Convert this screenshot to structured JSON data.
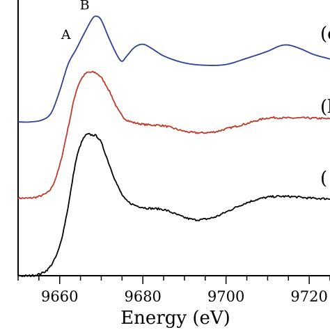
{
  "chart_data": {
    "type": "line",
    "title": "",
    "xlabel": "Energy (eV)",
    "ylabel": "",
    "xlim": [
      9650,
      9725
    ],
    "ylim": [
      0,
      3.55
    ],
    "x_ticks": [
      9660,
      9680,
      9700,
      9720
    ],
    "x_tick_labels": [
      "9660",
      "9680",
      "9700",
      "9720"
    ],
    "grid": false,
    "legend": "none",
    "annotations": [
      {
        "text": "A",
        "x": 9661.5,
        "y": 3.05
      },
      {
        "text": "B",
        "x": 9666,
        "y": 3.43
      }
    ],
    "series": [
      {
        "label": "(c",
        "label_y": 3.12,
        "color": "#2e3f93",
        "noise": 0.0,
        "points": [
          [
            9650,
            1.98
          ],
          [
            9653,
            1.98
          ],
          [
            9656,
            2.01
          ],
          [
            9658,
            2.1
          ],
          [
            9660,
            2.38
          ],
          [
            9662,
            2.72
          ],
          [
            9664,
            2.92
          ],
          [
            9666,
            3.13
          ],
          [
            9668,
            3.32
          ],
          [
            9669,
            3.34
          ],
          [
            9670,
            3.29
          ],
          [
            9672,
            3.04
          ],
          [
            9674,
            2.82
          ],
          [
            9675,
            2.76
          ],
          [
            9676,
            2.82
          ],
          [
            9678,
            2.94
          ],
          [
            9680,
            2.98
          ],
          [
            9682,
            2.93
          ],
          [
            9685,
            2.83
          ],
          [
            9690,
            2.74
          ],
          [
            9695,
            2.71
          ],
          [
            9700,
            2.72
          ],
          [
            9705,
            2.8
          ],
          [
            9710,
            2.89
          ],
          [
            9713,
            2.96
          ],
          [
            9715,
            2.97
          ],
          [
            9718,
            2.92
          ],
          [
            9721,
            2.85
          ],
          [
            9725,
            2.79
          ]
        ]
      },
      {
        "label": "(b",
        "label_y": 2.18,
        "color": "#c0392b",
        "noise": 0.012,
        "points": [
          [
            9650,
            1.0
          ],
          [
            9653,
            1.0
          ],
          [
            9656,
            1.04
          ],
          [
            9658,
            1.13
          ],
          [
            9660,
            1.42
          ],
          [
            9662,
            1.9
          ],
          [
            9664,
            2.38
          ],
          [
            9666,
            2.59
          ],
          [
            9668,
            2.62
          ],
          [
            9669,
            2.6
          ],
          [
            9670,
            2.55
          ],
          [
            9672,
            2.37
          ],
          [
            9674,
            2.14
          ],
          [
            9676,
            2.01
          ],
          [
            9680,
            1.95
          ],
          [
            9685,
            1.93
          ],
          [
            9690,
            1.86
          ],
          [
            9693,
            1.84
          ],
          [
            9697,
            1.85
          ],
          [
            9700,
            1.89
          ],
          [
            9705,
            1.96
          ],
          [
            9710,
            2.03
          ],
          [
            9715,
            2.03
          ],
          [
            9720,
            2.03
          ],
          [
            9725,
            2.02
          ]
        ]
      },
      {
        "label": "(",
        "label_y": 1.26,
        "color": "#000000",
        "noise": 0.013,
        "points": [
          [
            9650,
            0.0
          ],
          [
            9653,
            0.0
          ],
          [
            9656,
            0.04
          ],
          [
            9658,
            0.14
          ],
          [
            9660,
            0.38
          ],
          [
            9662,
            0.88
          ],
          [
            9664,
            1.5
          ],
          [
            9666,
            1.79
          ],
          [
            9668,
            1.81
          ],
          [
            9669,
            1.79
          ],
          [
            9670,
            1.71
          ],
          [
            9672,
            1.42
          ],
          [
            9674,
            1.15
          ],
          [
            9676,
            0.97
          ],
          [
            9680,
            0.88
          ],
          [
            9685,
            0.85
          ],
          [
            9690,
            0.75
          ],
          [
            9693,
            0.72
          ],
          [
            9697,
            0.75
          ],
          [
            9700,
            0.82
          ],
          [
            9705,
            0.94
          ],
          [
            9710,
            1.01
          ],
          [
            9715,
            1.02
          ],
          [
            9720,
            1.0
          ],
          [
            9725,
            0.99
          ]
        ]
      }
    ]
  }
}
